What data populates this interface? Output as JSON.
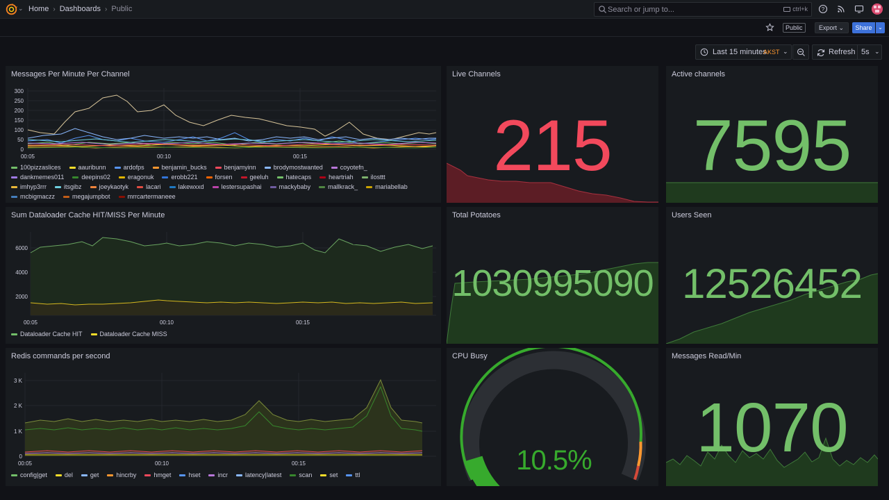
{
  "nav": {
    "breadcrumb": [
      "Home",
      "Dashboards",
      "Public"
    ],
    "search_placeholder": "Search or jump to...",
    "search_shortcut": "ctrl+k"
  },
  "toolbar": {
    "public_badge": "Public",
    "export_label": "Export",
    "share_label": "Share"
  },
  "time": {
    "range_label": "Last 15 minutes",
    "timezone": "AKST",
    "refresh_label": "Refresh",
    "refresh_interval": "5s"
  },
  "panels": {
    "messages_per_minute": {
      "title": "Messages Per Minute Per Channel",
      "y_ticks": [
        "300",
        "250",
        "200",
        "150",
        "100",
        "50",
        "0"
      ],
      "x_ticks": [
        "00:05",
        "00:10",
        "00:15"
      ],
      "legend": [
        {
          "name": "100pizzaslices",
          "color": "#73bf69"
        },
        {
          "name": "aauribunn",
          "color": "#fade2a"
        },
        {
          "name": "ardofps",
          "color": "#5794f2"
        },
        {
          "name": "benjamin_bucks",
          "color": "#ff9830"
        },
        {
          "name": "benjamyinn",
          "color": "#f2495c"
        },
        {
          "name": "brodymostwanted",
          "color": "#8ab8ff"
        },
        {
          "name": "coyotefn_",
          "color": "#b877d9"
        },
        {
          "name": "dankmemes011",
          "color": "#9f7ae4"
        },
        {
          "name": "deepins02",
          "color": "#37872d"
        },
        {
          "name": "eragonuk",
          "color": "#e0b400"
        },
        {
          "name": "erobb221",
          "color": "#3274d9"
        },
        {
          "name": "forsen",
          "color": "#fa6400"
        },
        {
          "name": "geeluh",
          "color": "#c4162a"
        },
        {
          "name": "hatecaps",
          "color": "#73bf69"
        },
        {
          "name": "heartriah",
          "color": "#ad0317"
        },
        {
          "name": "ilosttt",
          "color": "#7eb26d"
        },
        {
          "name": "imhyp3rrr",
          "color": "#eab839"
        },
        {
          "name": "itsgibz",
          "color": "#6ed0e0"
        },
        {
          "name": "joeykaotyk",
          "color": "#ef843c"
        },
        {
          "name": "lacari",
          "color": "#e24d42"
        },
        {
          "name": "lakewxxd",
          "color": "#1f78c1"
        },
        {
          "name": "lestersupashai",
          "color": "#ba43a9"
        },
        {
          "name": "mackybaby",
          "color": "#705da0"
        },
        {
          "name": "mallkrack_",
          "color": "#508642"
        },
        {
          "name": "mariabellab",
          "color": "#cca300"
        },
        {
          "name": "mcbigmaczz",
          "color": "#447ebc"
        },
        {
          "name": "megajumpbot",
          "color": "#c15c17"
        },
        {
          "name": "mrrcartermaneee",
          "color": "#890f02"
        }
      ]
    },
    "live_channels": {
      "title": "Live Channels",
      "value": "215",
      "color": "#f2495c"
    },
    "active_channels": {
      "title": "Active channels",
      "value": "7595",
      "color": "#73bf69"
    },
    "dataloader": {
      "title": "Sum Dataloader Cache HIT/MISS Per Minute",
      "y_ticks": [
        "6000",
        "4000",
        "2000"
      ],
      "x_ticks": [
        "00:05",
        "00:10",
        "00:15"
      ],
      "legend": [
        {
          "name": "Dataloader Cache HIT",
          "color": "#73bf69"
        },
        {
          "name": "Dataloader Cache MISS",
          "color": "#fade2a"
        }
      ]
    },
    "total_potatoes": {
      "title": "Total Potatoes",
      "value": "1030995090",
      "color": "#73bf69"
    },
    "users_seen": {
      "title": "Users Seen",
      "value": "12526452",
      "color": "#73bf69"
    },
    "redis": {
      "title": "Redis commands per second",
      "y_ticks": [
        "3 K",
        "2 K",
        "1 K",
        "0"
      ],
      "x_ticks": [
        "00:05",
        "00:10",
        "00:15"
      ],
      "legend": [
        {
          "name": "config|get",
          "color": "#73bf69"
        },
        {
          "name": "del",
          "color": "#fade2a"
        },
        {
          "name": "get",
          "color": "#8ab8ff"
        },
        {
          "name": "hincrby",
          "color": "#ff9830"
        },
        {
          "name": "hmget",
          "color": "#f2495c"
        },
        {
          "name": "hset",
          "color": "#5794f2"
        },
        {
          "name": "incr",
          "color": "#b877d9"
        },
        {
          "name": "latency|latest",
          "color": "#8ab8ff"
        },
        {
          "name": "scan",
          "color": "#37872d"
        },
        {
          "name": "set",
          "color": "#fade2a"
        },
        {
          "name": "ttl",
          "color": "#5794f2"
        }
      ]
    },
    "cpu_busy": {
      "title": "CPU Busy",
      "value": "10.5%",
      "percent": 10.5,
      "color": "#37aa2d"
    },
    "messages_read": {
      "title": "Messages Read/Min",
      "value": "1070",
      "color": "#73bf69"
    }
  }
}
